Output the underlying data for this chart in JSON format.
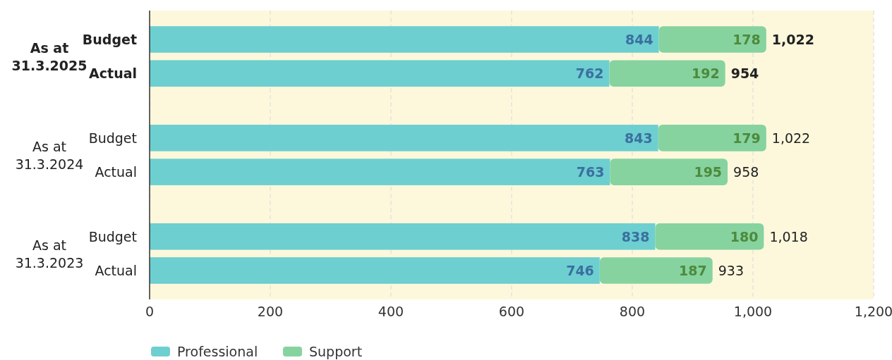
{
  "chart_data": {
    "type": "bar",
    "orientation": "horizontal",
    "stacked": true,
    "categories": [
      "Budget",
      "Actual",
      "Budget",
      "Actual",
      "Budget",
      "Actual"
    ],
    "series": [
      {
        "name": "Professional",
        "color": "#6dcfd0",
        "values": [
          844,
          762,
          843,
          763,
          838,
          746
        ]
      },
      {
        "name": "Support",
        "color": "#86d3a0",
        "values": [
          178,
          192,
          179,
          195,
          180,
          187
        ]
      }
    ],
    "totals": [
      "1,022",
      "954",
      "1,022",
      "958",
      "1,018",
      "933"
    ],
    "data_labels": true,
    "annotations": [
      "As at 31.3.2025",
      "As at 31.3.2024",
      "As at 31.3.2023"
    ],
    "xlim": [
      0,
      1200
    ],
    "xticks": [
      0,
      200,
      400,
      600,
      800,
      {
        "value": 1000,
        "label": "1,000"
      },
      {
        "value": 1200,
        "label": "1,200"
      }
    ],
    "grid": "x",
    "legend": "bottom"
  }
}
